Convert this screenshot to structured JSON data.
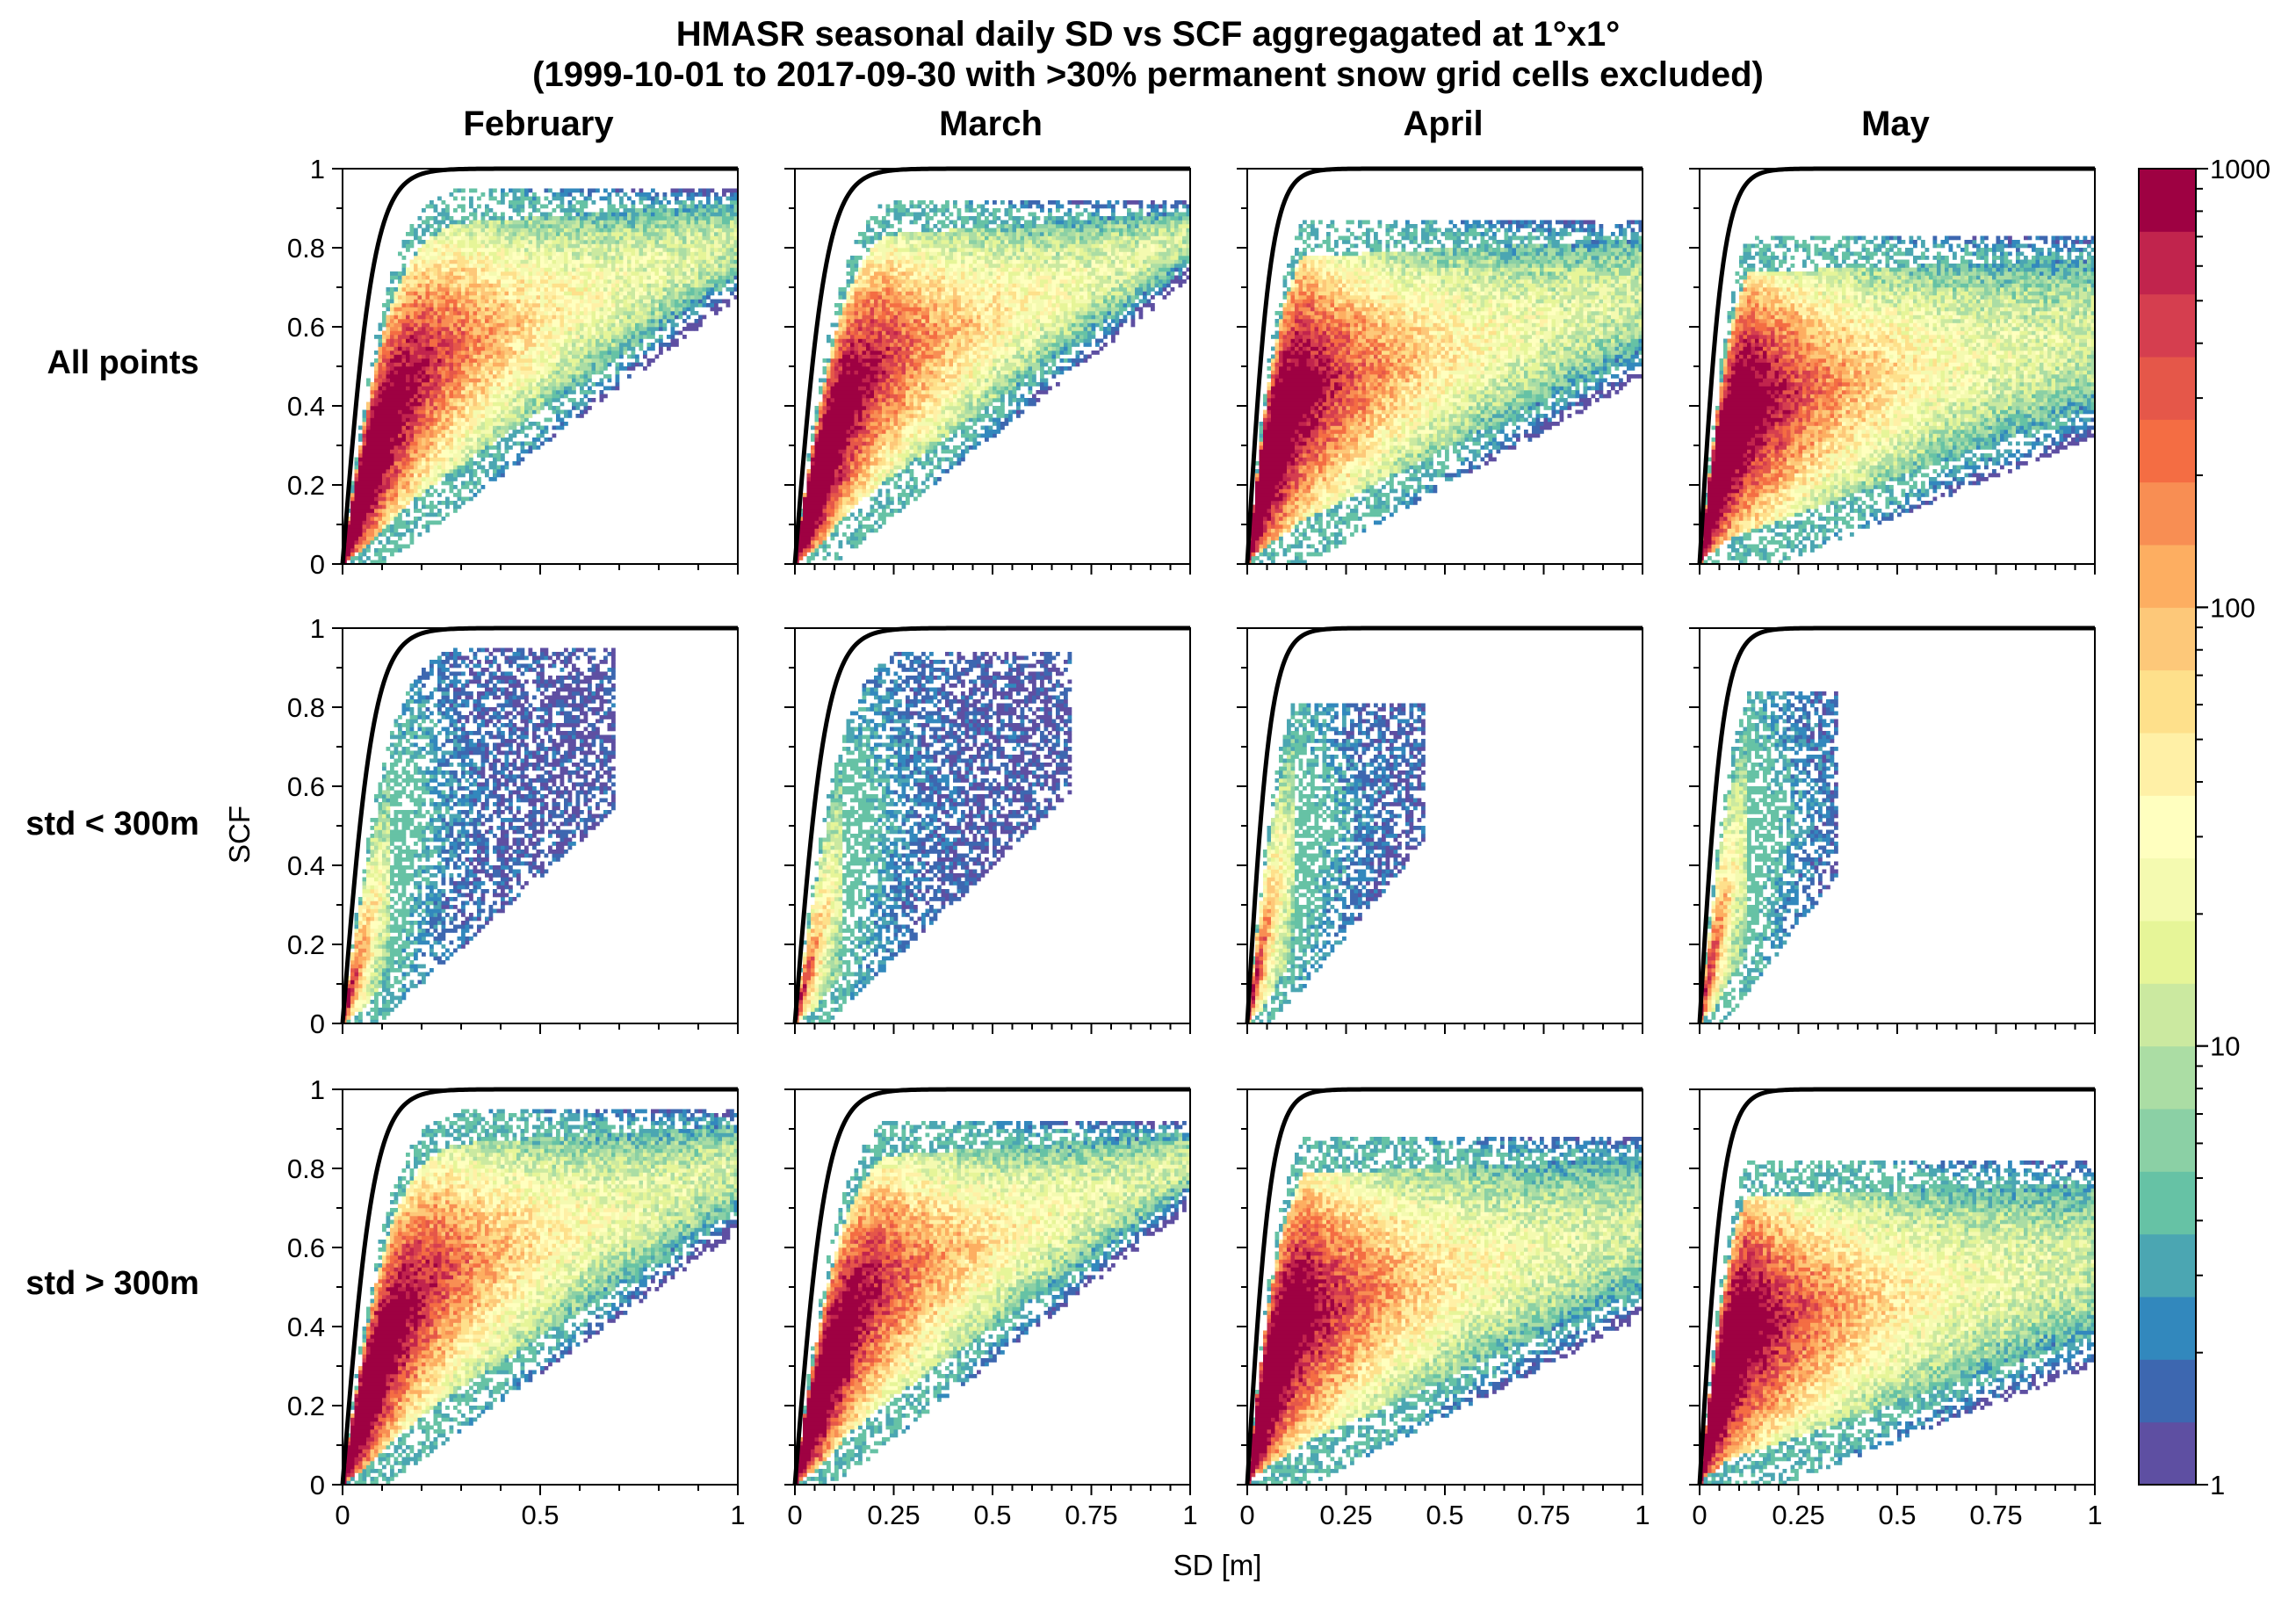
{
  "title_line1": "HMASR seasonal daily SD vs SCF aggregagated at 1°x1°",
  "title_line2": "(1999-10-01 to 2017-09-30 with >30% permanent snow grid cells excluded)",
  "columns": [
    "February",
    "March",
    "April",
    "May"
  ],
  "rows": [
    "All points",
    "std < 300m",
    "std > 300m"
  ],
  "xlabel": "SD [m]",
  "ylabel": "SCF",
  "colorbar": {
    "scale": "log",
    "range": [
      1,
      1000
    ],
    "ticks": [
      "1",
      "10",
      "100",
      "1000"
    ],
    "colormap": "Spectral_r",
    "colors": [
      "#5e4fa2",
      "#3d67b0",
      "#3288bd",
      "#4ba6b2",
      "#66c2a5",
      "#8bd0a5",
      "#abdda4",
      "#cbe9a0",
      "#e6f598",
      "#f4fab0",
      "#ffffbf",
      "#fff0a6",
      "#fee08b",
      "#fdc879",
      "#fdae61",
      "#f88e53",
      "#f46d43",
      "#e55749",
      "#d53e4f",
      "#c1244d",
      "#9e0142"
    ]
  },
  "chart_data": {
    "type": "heatmap",
    "description_of_axes": {
      "x": [
        0,
        1
      ],
      "y": [
        0,
        1
      ]
    },
    "x_tick_labels": {
      "February": [
        "0",
        "0.5",
        "1"
      ],
      "March": [
        "0",
        "0.25",
        "0.5",
        "0.75",
        "1"
      ],
      "April": [
        "0",
        "0.25",
        "0.5",
        "0.75",
        "1"
      ],
      "May": [
        "0",
        "0.25",
        "0.5",
        "0.75",
        "1"
      ]
    },
    "y_tick_labels": [
      "0",
      "0.2",
      "0.4",
      "0.6",
      "0.8",
      "1"
    ],
    "panels": [
      {
        "row": "All points",
        "column": "February",
        "curve_scale_m": 0.08,
        "max_sd": 1.0,
        "max_scf": 0.94,
        "min_slope": 0.75
      },
      {
        "row": "All points",
        "column": "March",
        "curve_scale_m": 0.08,
        "max_sd": 1.0,
        "max_scf": 0.91,
        "min_slope": 0.8
      },
      {
        "row": "All points",
        "column": "April",
        "curve_scale_m": 0.06,
        "max_sd": 1.0,
        "max_scf": 0.86,
        "min_slope": 0.55
      },
      {
        "row": "All points",
        "column": "May",
        "curve_scale_m": 0.06,
        "max_sd": 1.0,
        "max_scf": 0.82,
        "min_slope": 0.4
      },
      {
        "row": "std < 300m",
        "column": "February",
        "curve_scale_m": 0.08,
        "max_sd": 0.69,
        "max_scf": 0.94,
        "min_slope": 0.9
      },
      {
        "row": "std < 300m",
        "column": "March",
        "curve_scale_m": 0.08,
        "max_sd": 0.7,
        "max_scf": 0.93,
        "min_slope": 0.95
      },
      {
        "row": "std < 300m",
        "column": "April",
        "curve_scale_m": 0.06,
        "max_sd": 0.45,
        "max_scf": 0.8,
        "min_slope": 1.2
      },
      {
        "row": "std < 300m",
        "column": "May",
        "curve_scale_m": 0.06,
        "max_sd": 0.35,
        "max_scf": 0.83,
        "min_slope": 1.3
      },
      {
        "row": "std > 300m",
        "column": "February",
        "curve_scale_m": 0.08,
        "max_sd": 1.0,
        "max_scf": 0.94,
        "min_slope": 0.72
      },
      {
        "row": "std > 300m",
        "column": "March",
        "curve_scale_m": 0.08,
        "max_sd": 1.0,
        "max_scf": 0.91,
        "min_slope": 0.78
      },
      {
        "row": "std > 300m",
        "column": "April",
        "curve_scale_m": 0.06,
        "max_sd": 1.0,
        "max_scf": 0.87,
        "min_slope": 0.5
      },
      {
        "row": "std > 300m",
        "column": "May",
        "curve_scale_m": 0.06,
        "max_sd": 1.0,
        "max_scf": 0.81,
        "min_slope": 0.38
      }
    ],
    "curve": "SCF = tanh(SD / scale)"
  }
}
